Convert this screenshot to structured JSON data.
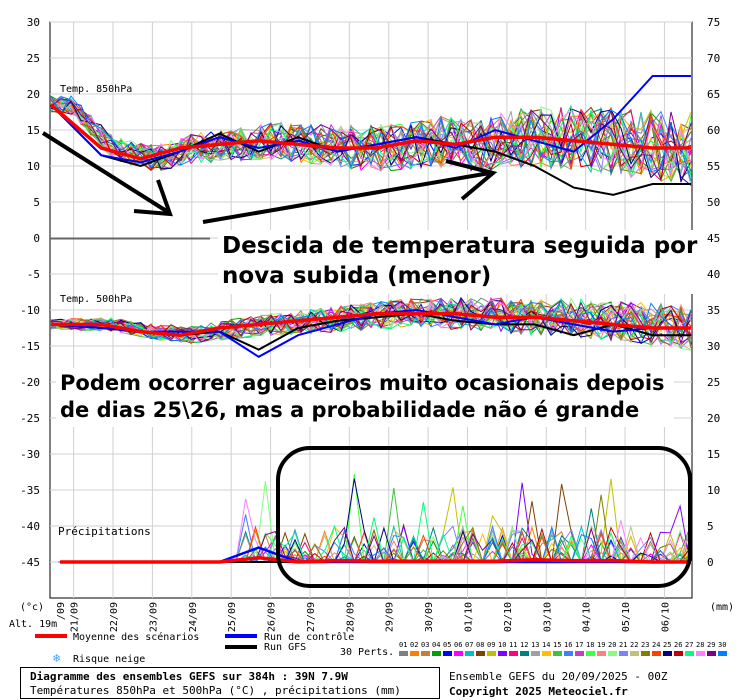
{
  "chart_data": {
    "type": "line",
    "left_axis": {
      "unit": "(°c)",
      "ticks": [
        30,
        25,
        20,
        15,
        10,
        5,
        0,
        -5,
        -10,
        -15,
        -20,
        -25,
        -30,
        -35,
        -40,
        -45
      ]
    },
    "right_axis": {
      "unit": "(mm)",
      "ticks": [
        75,
        70,
        65,
        60,
        55,
        50,
        45,
        40,
        35,
        30,
        25,
        20,
        15,
        10,
        5,
        0
      ]
    },
    "x": [
      "21/09",
      "22/09",
      "23/09",
      "24/09",
      "25/09",
      "26/09",
      "27/09",
      "28/09",
      "29/09",
      "30/09",
      "01/10",
      "02/10",
      "03/10",
      "04/10",
      "05/10",
      "06/10"
    ],
    "x_first_partial": "/09",
    "panels": [
      {
        "name": "Temp. 850hPa",
        "mean_series": [
          18.5,
          12.5,
          11.0,
          12.5,
          13.0,
          13.5,
          13.0,
          12.5,
          12.5,
          13.5,
          13.0,
          14.0,
          14.0,
          13.5,
          13.0,
          12.5
        ],
        "control_series": [
          18.5,
          11.5,
          10.5,
          12.0,
          14.0,
          12.5,
          13.5,
          12.0,
          13.0,
          14.0,
          12.5,
          15.0,
          13.5,
          12.0,
          16.5,
          22.5
        ],
        "gfs_series": [
          18.5,
          11.5,
          10.0,
          12.0,
          14.5,
          12.0,
          14.0,
          12.0,
          13.0,
          14.0,
          13.0,
          12.0,
          10.0,
          7.0,
          6.0,
          7.5
        ]
      },
      {
        "name": "Temp. 500hPa",
        "mean_series": [
          -12.0,
          -12.0,
          -13.0,
          -13.5,
          -12.5,
          -12.0,
          -11.5,
          -11.0,
          -10.5,
          -10.5,
          -10.5,
          -11.0,
          -11.0,
          -11.5,
          -12.0,
          -12.5
        ],
        "control_series": [
          -12.0,
          -12.5,
          -13.0,
          -13.0,
          -13.0,
          -16.5,
          -13.5,
          -12.0,
          -10.5,
          -10.0,
          -11.0,
          -12.0,
          -11.0,
          -12.0,
          -13.0,
          -12.5
        ],
        "gfs_series": [
          -12.0,
          -12.5,
          -13.0,
          -13.5,
          -13.0,
          -15.5,
          -12.5,
          -11.5,
          -11.0,
          -10.5,
          -11.5,
          -12.0,
          -12.0,
          -13.5,
          -12.0,
          -13.5
        ]
      },
      {
        "name": "Précipitations",
        "mean_series": [
          0,
          0,
          0,
          0,
          0,
          0.6,
          0,
          0.2,
          0.1,
          0.1,
          0.1,
          0.1,
          0.3,
          0.2,
          0.2,
          0
        ],
        "control_series": [
          0,
          0,
          0,
          0,
          0,
          2.0,
          0,
          0,
          0,
          0,
          0,
          0,
          0,
          0,
          0,
          0
        ],
        "gfs_series": [
          0,
          0,
          0,
          0,
          0,
          0,
          0,
          0,
          0,
          0,
          0,
          0,
          0,
          0,
          0,
          0
        ],
        "member_peak_max": 12.5
      }
    ],
    "perturbations": [
      "01",
      "02",
      "03",
      "04",
      "05",
      "06",
      "07",
      "08",
      "09",
      "10",
      "11",
      "12",
      "13",
      "14",
      "15",
      "16",
      "17",
      "18",
      "19",
      "20",
      "21",
      "22",
      "23",
      "24",
      "25",
      "26",
      "27",
      "28",
      "29",
      "30"
    ],
    "perturbation_colors": [
      "#808080",
      "#ff8000",
      "#c08040",
      "#00a000",
      "#0000ff",
      "#ff00ff",
      "#00c0c0",
      "#804000",
      "#c0c000",
      "#8000ff",
      "#ff0080",
      "#008080",
      "#a0a0a0",
      "#ffc000",
      "#40c040",
      "#4080ff",
      "#c040c0",
      "#40ff40",
      "#ff8080",
      "#80ff80",
      "#8080ff",
      "#c0c080",
      "#808000",
      "#ff4000",
      "#000080",
      "#c00000",
      "#00ff80",
      "#ff80ff",
      "#800080",
      "#0080ff"
    ],
    "legend": {
      "mean": "Moyenne des scénarios",
      "control": "Run de contrôle",
      "gfs": "Run GFS",
      "snow": "Risque neige",
      "perts": "30 Perts."
    },
    "colors": {
      "mean": "#ff0000",
      "control": "#0000ff",
      "gfs": "#000000"
    }
  },
  "altitude": "Alt. 19m",
  "info": {
    "line1": "Diagramme des ensembles GEFS sur 384h : 39N 7.9W",
    "line2": "Températures 850hPa et 500hPa (°C) , précipitations (mm)",
    "credit": "Ensemble GEFS du 20/09/2025 - 00Z",
    "copyright": "Copyright 2025 Meteociel.fr"
  },
  "annotations": {
    "headline": "Descida de temperatura seguida por nova subida (menor)",
    "rain_note": "Podem ocorrer aguaceiros muito ocasionais depois de dias 25\\26, mas a probabilidade não é grande"
  }
}
